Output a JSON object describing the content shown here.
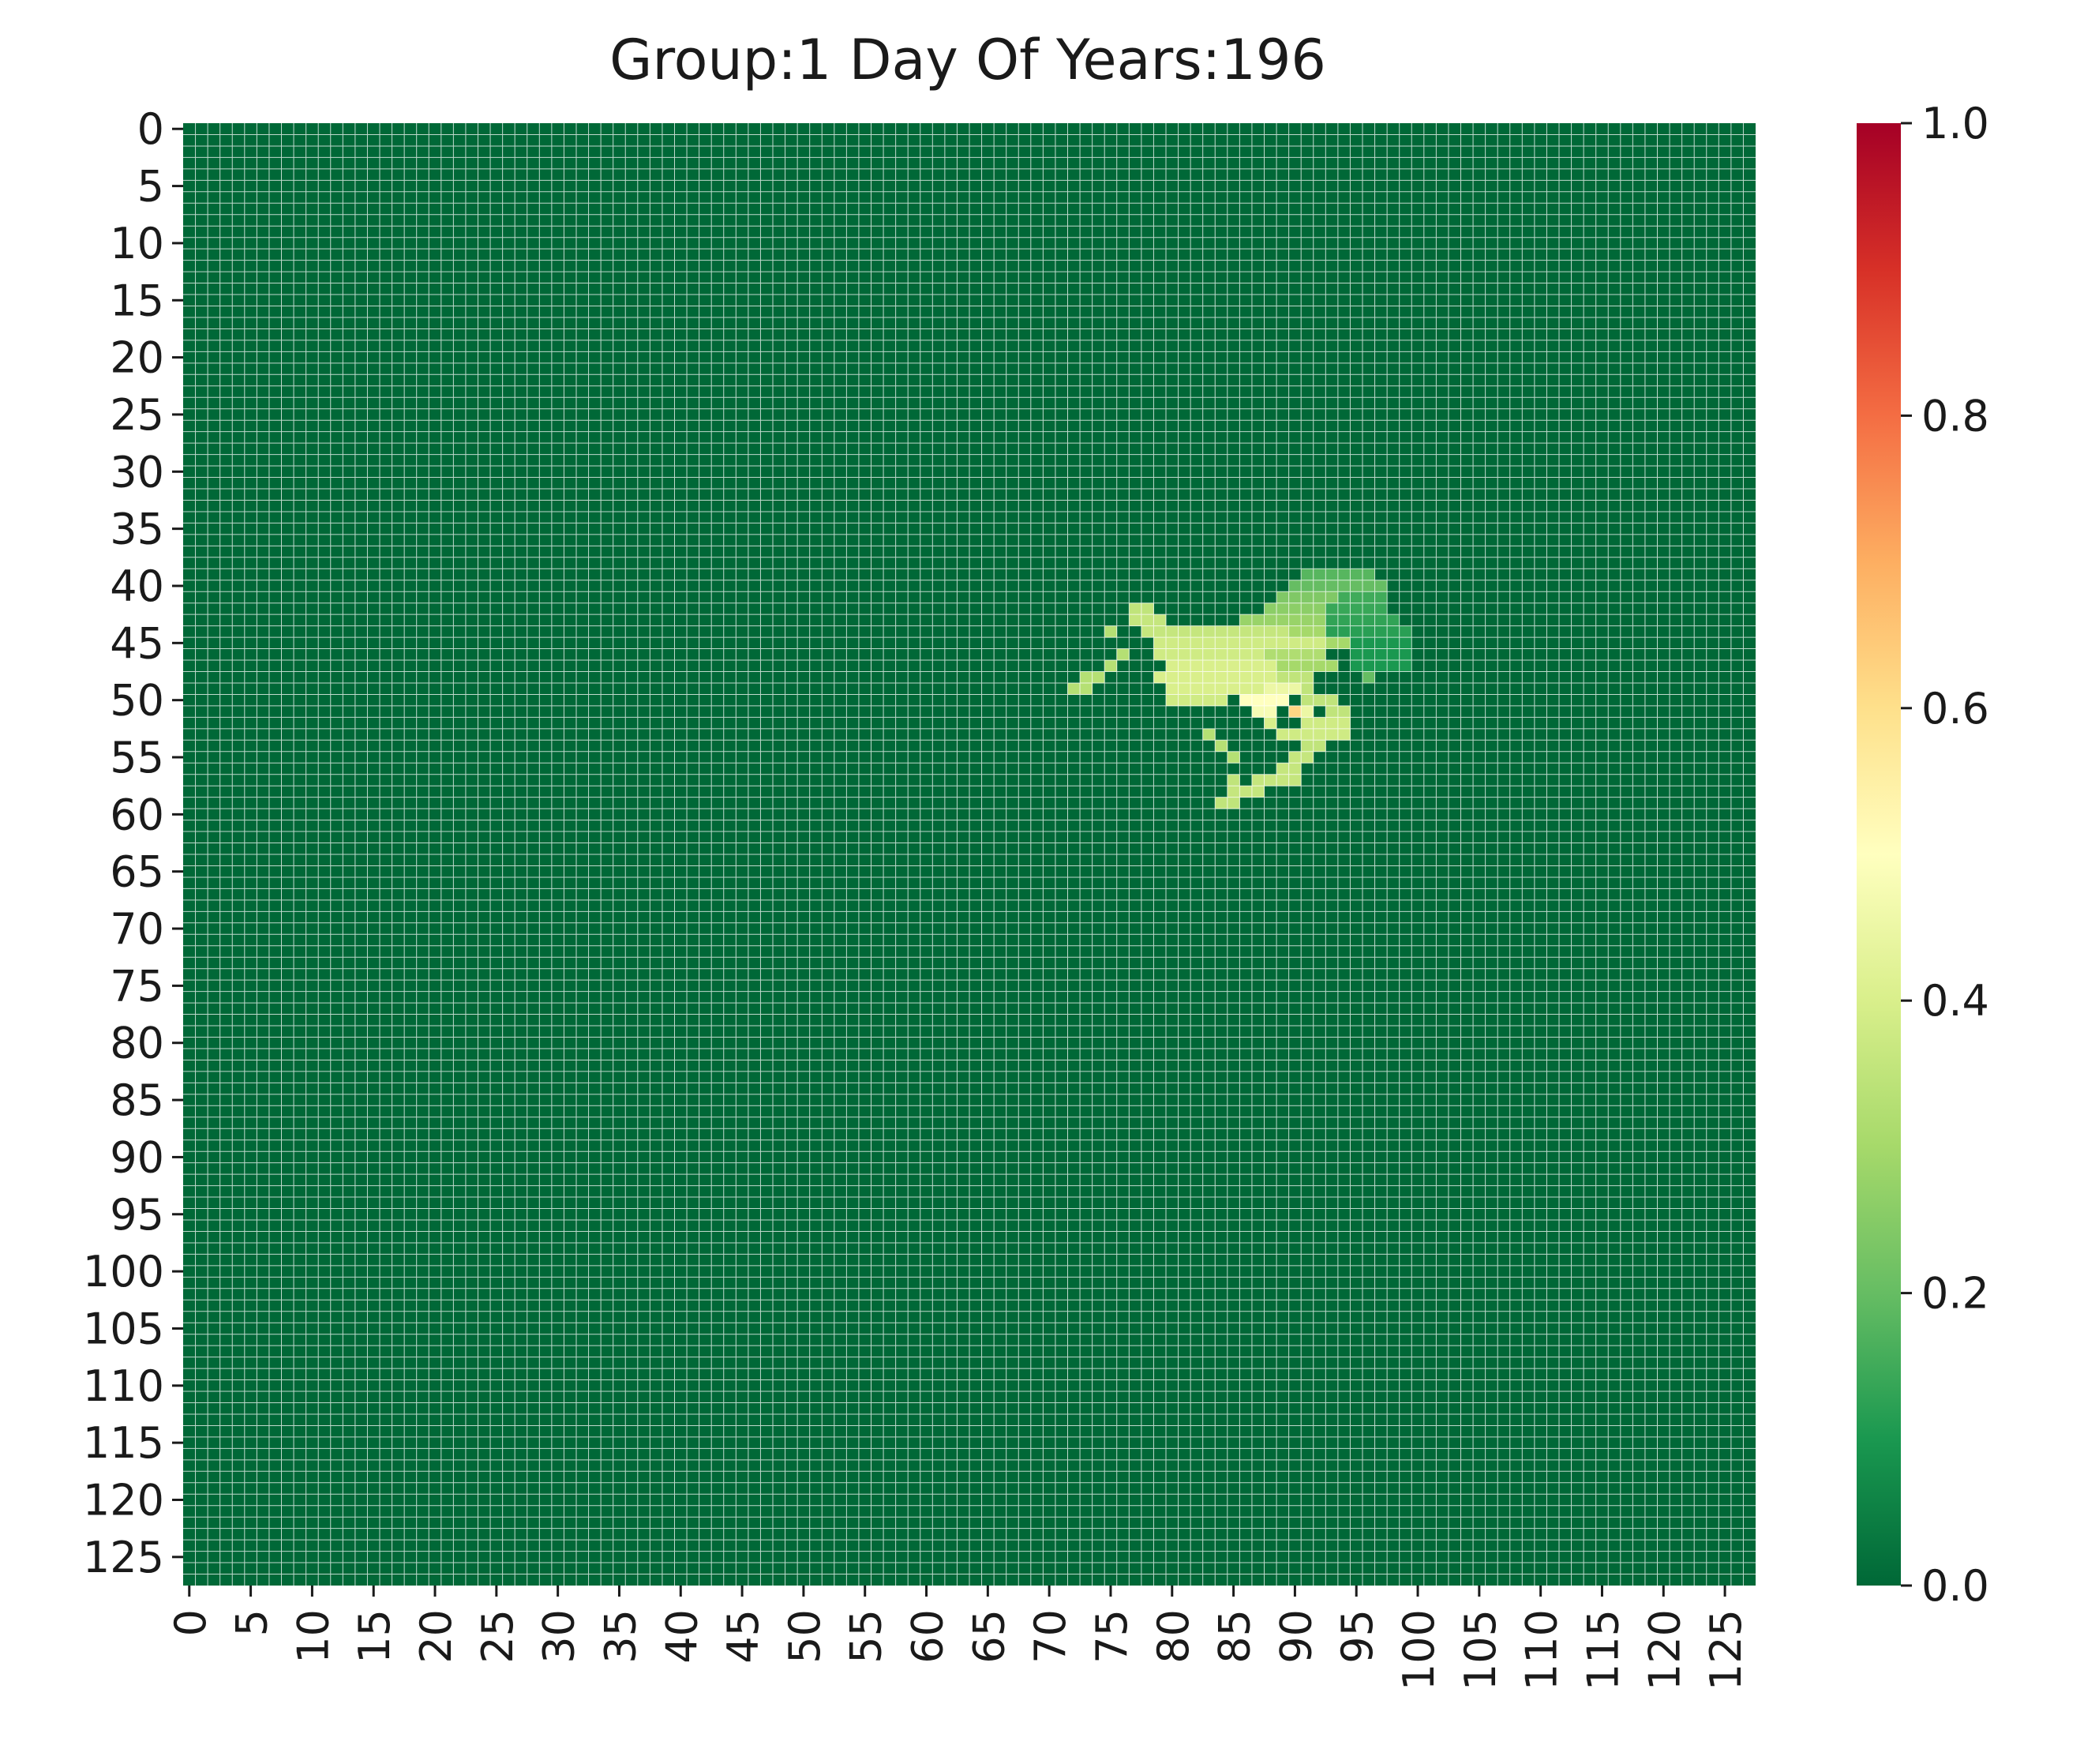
{
  "chart_data": {
    "type": "heatmap",
    "title": "Group:1 Day Of Years:196",
    "xlabel": "",
    "ylabel": "",
    "rows": 128,
    "cols": 128,
    "tick_step": 5,
    "x_tick_labels": [
      "0",
      "5",
      "10",
      "15",
      "20",
      "25",
      "30",
      "35",
      "40",
      "45",
      "50",
      "55",
      "60",
      "65",
      "70",
      "75",
      "80",
      "85",
      "90",
      "95",
      "100",
      "105",
      "110",
      "115",
      "120",
      "125"
    ],
    "y_tick_labels": [
      "0",
      "5",
      "10",
      "15",
      "20",
      "25",
      "30",
      "35",
      "40",
      "45",
      "50",
      "55",
      "60",
      "65",
      "70",
      "75",
      "80",
      "85",
      "90",
      "95",
      "100",
      "105",
      "110",
      "115",
      "120",
      "125"
    ],
    "colormap": "RdYlGn_r",
    "colormap_stops": [
      "#006837",
      "#1a9850",
      "#66bd63",
      "#a6d96a",
      "#d9ef8b",
      "#ffffbf",
      "#fee08b",
      "#fdae61",
      "#f46d43",
      "#d73027",
      "#a50026"
    ],
    "vmin": 0.0,
    "vmax": 1.0,
    "background_value": 0.0,
    "grid": true,
    "gridline_color": "#ffffff",
    "colorbar": {
      "ticks": [
        0.0,
        0.2,
        0.4,
        0.6,
        0.8,
        1.0
      ],
      "tick_labels": [
        "0.0",
        "0.2",
        "0.4",
        "0.6",
        "0.8",
        "1.0"
      ],
      "placement": "right"
    },
    "nonzero_cells": [
      {
        "row": 39,
        "cols": [
          91,
          92,
          93,
          94,
          95,
          96
        ],
        "value": 0.18
      },
      {
        "row": 40,
        "cols": [
          90,
          91,
          92,
          93,
          94,
          95,
          96,
          97
        ],
        "value": 0.2
      },
      {
        "row": 41,
        "cols": [
          89,
          90,
          91,
          92,
          93
        ],
        "value": 0.24
      },
      {
        "row": 41,
        "cols": [
          94,
          95,
          96,
          97
        ],
        "value": 0.15
      },
      {
        "row": 42,
        "cols": [
          77,
          78
        ],
        "value": 0.35
      },
      {
        "row": 42,
        "cols": [
          88,
          89,
          90,
          91,
          92
        ],
        "value": 0.26
      },
      {
        "row": 42,
        "cols": [
          93,
          94,
          95,
          96,
          97
        ],
        "value": 0.14
      },
      {
        "row": 43,
        "cols": [
          77,
          78,
          79
        ],
        "value": 0.36
      },
      {
        "row": 43,
        "cols": [
          86,
          87,
          88,
          89,
          90,
          91,
          92
        ],
        "value": 0.28
      },
      {
        "row": 43,
        "cols": [
          93,
          94,
          95,
          96,
          97,
          98
        ],
        "value": 0.13
      },
      {
        "row": 44,
        "cols": [
          75
        ],
        "value": 0.33
      },
      {
        "row": 44,
        "cols": [
          78,
          79,
          80,
          81,
          82,
          83,
          84,
          85,
          86,
          87,
          88,
          89
        ],
        "value": 0.36
      },
      {
        "row": 44,
        "cols": [
          90,
          91,
          92
        ],
        "value": 0.3
      },
      {
        "row": 44,
        "cols": [
          93,
          94,
          95,
          96,
          97,
          98,
          99
        ],
        "value": 0.12
      },
      {
        "row": 45,
        "cols": [
          79,
          80,
          81,
          82,
          83,
          84,
          85,
          86,
          87,
          88,
          89,
          90,
          91,
          92
        ],
        "value": 0.38
      },
      {
        "row": 45,
        "cols": [
          93,
          94
        ],
        "value": 0.3
      },
      {
        "row": 45,
        "cols": [
          95,
          96,
          97,
          98,
          99
        ],
        "value": 0.1
      },
      {
        "row": 46,
        "cols": [
          76
        ],
        "value": 0.33
      },
      {
        "row": 46,
        "cols": [
          79,
          80,
          81,
          82,
          83,
          84,
          85,
          86,
          87
        ],
        "value": 0.38
      },
      {
        "row": 46,
        "cols": [
          88,
          89,
          90,
          91,
          92
        ],
        "value": 0.32
      },
      {
        "row": 46,
        "cols": [
          95,
          96,
          97,
          98,
          99
        ],
        "value": 0.1
      },
      {
        "row": 47,
        "cols": [
          75
        ],
        "value": 0.33
      },
      {
        "row": 47,
        "cols": [
          80,
          81,
          82,
          83,
          84,
          85,
          86,
          87,
          88
        ],
        "value": 0.4
      },
      {
        "row": 47,
        "cols": [
          89,
          90,
          91,
          92,
          93
        ],
        "value": 0.3
      },
      {
        "row": 47,
        "cols": [
          95,
          96,
          97,
          98,
          99
        ],
        "value": 0.1
      },
      {
        "row": 48,
        "cols": [
          73,
          74
        ],
        "value": 0.33
      },
      {
        "row": 48,
        "cols": [
          79,
          80,
          81,
          82,
          83,
          84,
          85,
          86,
          87,
          88
        ],
        "value": 0.4
      },
      {
        "row": 48,
        "cols": [
          89,
          90,
          91
        ],
        "value": 0.35
      },
      {
        "row": 48,
        "cols": [
          96
        ],
        "value": 0.2
      },
      {
        "row": 49,
        "cols": [
          72,
          73
        ],
        "value": 0.33
      },
      {
        "row": 49,
        "cols": [
          80,
          81,
          82,
          83,
          84,
          85,
          86,
          87
        ],
        "value": 0.4
      },
      {
        "row": 49,
        "cols": [
          88,
          89,
          90
        ],
        "value": 0.45
      },
      {
        "row": 49,
        "cols": [
          91
        ],
        "value": 0.35
      },
      {
        "row": 50,
        "cols": [
          80,
          81,
          82,
          83,
          84
        ],
        "value": 0.38
      },
      {
        "row": 50,
        "cols": [
          86,
          87,
          88,
          89
        ],
        "value": 0.5
      },
      {
        "row": 50,
        "cols": [
          91,
          92,
          93
        ],
        "value": 0.35
      },
      {
        "row": 51,
        "cols": [
          87,
          88
        ],
        "value": 0.48
      },
      {
        "row": 51,
        "cols": [
          90
        ],
        "value": 0.62
      },
      {
        "row": 51,
        "cols": [
          91
        ],
        "value": 0.45
      },
      {
        "row": 51,
        "cols": [
          93,
          94
        ],
        "value": 0.35
      },
      {
        "row": 52,
        "cols": [
          88
        ],
        "value": 0.4
      },
      {
        "row": 52,
        "cols": [
          91,
          92,
          93,
          94
        ],
        "value": 0.38
      },
      {
        "row": 53,
        "cols": [
          83
        ],
        "value": 0.33
      },
      {
        "row": 53,
        "cols": [
          89,
          90,
          91,
          92,
          93,
          94
        ],
        "value": 0.38
      },
      {
        "row": 54,
        "cols": [
          84
        ],
        "value": 0.33
      },
      {
        "row": 54,
        "cols": [
          91,
          92
        ],
        "value": 0.35
      },
      {
        "row": 55,
        "cols": [
          85
        ],
        "value": 0.33
      },
      {
        "row": 55,
        "cols": [
          90,
          91
        ],
        "value": 0.36
      },
      {
        "row": 56,
        "cols": [
          89,
          90
        ],
        "value": 0.36
      },
      {
        "row": 57,
        "cols": [
          85
        ],
        "value": 0.35
      },
      {
        "row": 57,
        "cols": [
          87,
          88,
          89,
          90
        ],
        "value": 0.36
      },
      {
        "row": 58,
        "cols": [
          85,
          86,
          87
        ],
        "value": 0.36
      },
      {
        "row": 59,
        "cols": [
          84,
          85
        ],
        "value": 0.35
      }
    ]
  }
}
